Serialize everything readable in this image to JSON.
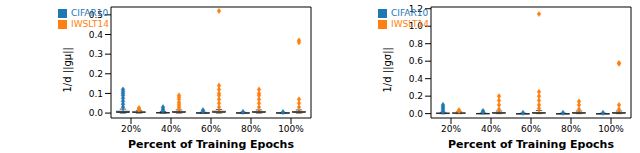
{
  "chart_data": [
    {
      "type": "box",
      "y_label": "1/d ||gμ||",
      "x_label": "Percent of Training Epochs",
      "categories": [
        "20%",
        "40%",
        "60%",
        "80%",
        "100%"
      ],
      "ylim": [
        -0.025,
        0.54
      ],
      "yticks": [
        {
          "value": 0,
          "label": "0.0"
        },
        {
          "value": 0.1,
          "label": "0.1"
        },
        {
          "value": 0.2,
          "label": "0.2"
        },
        {
          "value": 0.3,
          "label": "0.3"
        },
        {
          "value": 0.4,
          "label": "0.4"
        },
        {
          "value": 0.5,
          "label": "0.5"
        }
      ],
      "legend": "upper left",
      "series": [
        {
          "name": "CIFAR10",
          "color": "#1f77b4",
          "box": [
            [
              0,
              0.002,
              0.005,
              0.01,
              0.02
            ],
            [
              0,
              0.001,
              0.002,
              0.004,
              0.008
            ],
            [
              0,
              0.0005,
              0.001,
              0.002,
              0.004
            ],
            [
              0,
              0.0005,
              0.001,
              0.002,
              0.004
            ],
            [
              0,
              0.0005,
              0.001,
              0.002,
              0.003
            ]
          ],
          "outliers": [
            [
              0.03,
              0.045,
              0.06,
              0.075,
              0.09,
              0.1,
              0.11,
              0.12
            ],
            [
              0.012,
              0.02,
              0.03
            ],
            [
              0.008,
              0.015
            ],
            [
              0.006
            ],
            [
              0.005
            ]
          ]
        },
        {
          "name": "IWSLT14",
          "color": "#ff7f0e",
          "box": [
            [
              0,
              0.002,
              0.004,
              0.007,
              0.012
            ],
            [
              0,
              0.003,
              0.005,
              0.009,
              0.016
            ],
            [
              0,
              0.003,
              0.006,
              0.01,
              0.018
            ],
            [
              0,
              0.003,
              0.005,
              0.009,
              0.016
            ],
            [
              0,
              0.003,
              0.005,
              0.009,
              0.016
            ]
          ],
          "outliers": [
            [
              0.018,
              0.022,
              0.026
            ],
            [
              0.025,
              0.035,
              0.045,
              0.055,
              0.07,
              0.08,
              0.09
            ],
            [
              0.03,
              0.05,
              0.07,
              0.09,
              0.1,
              0.12,
              0.14,
              0.52
            ],
            [
              0.03,
              0.05,
              0.07,
              0.09,
              0.1,
              0.12
            ],
            [
              0.03,
              0.05,
              0.07,
              0.36,
              0.37
            ]
          ]
        }
      ]
    },
    {
      "type": "box",
      "y_label": "1/d ||gσ||",
      "x_label": "Percent of Training Epochs",
      "categories": [
        "20%",
        "40%",
        "60%",
        "80%",
        "100%"
      ],
      "ylim": [
        -0.05,
        1.22
      ],
      "yticks": [
        {
          "value": 0,
          "label": "0.0"
        },
        {
          "value": 0.2,
          "label": "0.2"
        },
        {
          "value": 0.4,
          "label": "0.4"
        },
        {
          "value": 0.6,
          "label": "0.6"
        },
        {
          "value": 0.8,
          "label": "0.8"
        },
        {
          "value": 1.0,
          "label": "1.0"
        },
        {
          "value": 1.2,
          "label": "1.2"
        }
      ],
      "legend": "upper left",
      "series": [
        {
          "name": "CIFAR10",
          "color": "#1f77b4",
          "box": [
            [
              0,
              0.002,
              0.004,
              0.008,
              0.015
            ],
            [
              0,
              0.001,
              0.002,
              0.004,
              0.008
            ],
            [
              0,
              0.0005,
              0.001,
              0.002,
              0.004
            ],
            [
              0,
              0.0005,
              0.001,
              0.002,
              0.004
            ],
            [
              0,
              0.0005,
              0.001,
              0.002,
              0.004
            ]
          ],
          "outliers": [
            [
              0.02,
              0.04,
              0.06,
              0.08,
              0.1
            ],
            [
              0.02,
              0.03
            ],
            [
              0.01
            ],
            [
              0.01
            ],
            [
              0.01
            ]
          ]
        },
        {
          "name": "IWSLT14",
          "color": "#ff7f0e",
          "box": [
            [
              0,
              0.003,
              0.006,
              0.01,
              0.02
            ],
            [
              0,
              0.004,
              0.008,
              0.014,
              0.03
            ],
            [
              0,
              0.004,
              0.008,
              0.015,
              0.035
            ],
            [
              0,
              0.004,
              0.008,
              0.014,
              0.03
            ],
            [
              0,
              0.004,
              0.008,
              0.014,
              0.03
            ]
          ],
          "outliers": [
            [
              0.03,
              0.04
            ],
            [
              0.05,
              0.1,
              0.15,
              0.2
            ],
            [
              0.06,
              0.1,
              0.15,
              0.2,
              0.25,
              1.14
            ],
            [
              0.05,
              0.1,
              0.14
            ],
            [
              0.05,
              0.1,
              0.57,
              0.58
            ]
          ]
        }
      ]
    }
  ]
}
